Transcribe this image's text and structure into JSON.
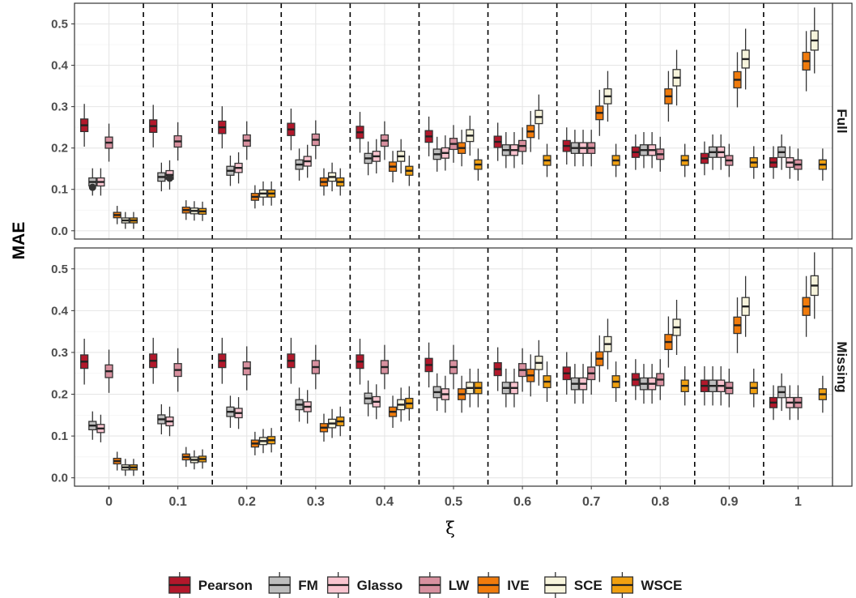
{
  "chart_data": {
    "type": "boxplot",
    "xlabel": "ξ",
    "ylabel": "MAE",
    "categories": [
      "0",
      "0.1",
      "0.2",
      "0.3",
      "0.4",
      "0.5",
      "0.6",
      "0.7",
      "0.8",
      "0.9",
      "1"
    ],
    "ylim": [
      -0.02,
      0.55
    ],
    "yticks": [
      0.0,
      0.1,
      0.2,
      0.3,
      0.4,
      0.5
    ],
    "ytick_labels": [
      "0.0",
      "0.1",
      "0.2",
      "0.3",
      "0.4",
      "0.5"
    ],
    "grid": true,
    "legend_position": "bottom",
    "series": [
      {
        "name": "Pearson",
        "color": "#b2182b"
      },
      {
        "name": "FM",
        "color": "#bdbdbd"
      },
      {
        "name": "Glasso",
        "color": "#f9c4cf"
      },
      {
        "name": "LW",
        "color": "#d8909f"
      },
      {
        "name": "IVE",
        "color": "#f07b0c"
      },
      {
        "name": "SCE",
        "color": "#f7f4dc"
      },
      {
        "name": "WSCE",
        "color": "#f0a010"
      }
    ],
    "panels": [
      {
        "label": "Full",
        "medians": [
          [
            0.255,
            0.118,
            0.118,
            0.213,
            0.038,
            0.025,
            0.025
          ],
          [
            0.253,
            0.13,
            0.135,
            0.216,
            0.05,
            0.048,
            0.047
          ],
          [
            0.25,
            0.145,
            0.152,
            0.218,
            0.082,
            0.09,
            0.09
          ],
          [
            0.245,
            0.16,
            0.168,
            0.22,
            0.118,
            0.13,
            0.118
          ],
          [
            0.238,
            0.175,
            0.18,
            0.218,
            0.155,
            0.18,
            0.145
          ],
          [
            0.228,
            0.185,
            0.188,
            0.21,
            0.2,
            0.23,
            0.16
          ],
          [
            0.215,
            0.195,
            0.195,
            0.205,
            0.24,
            0.275,
            0.17
          ],
          [
            0.205,
            0.2,
            0.2,
            0.2,
            0.285,
            0.325,
            0.17
          ],
          [
            0.19,
            0.195,
            0.195,
            0.185,
            0.325,
            0.37,
            0.17
          ],
          [
            0.175,
            0.19,
            0.19,
            0.17,
            0.365,
            0.415,
            0.165
          ],
          [
            0.165,
            0.19,
            0.165,
            0.16,
            0.41,
            0.46,
            0.16
          ]
        ],
        "outliers": [
          {
            "group": "0",
            "series": "FM",
            "y": 0.105
          },
          {
            "group": "0.1",
            "series": "Glasso",
            "y": 0.127
          }
        ]
      },
      {
        "label": "Missing",
        "medians": [
          [
            0.278,
            0.125,
            0.118,
            0.255,
            0.04,
            0.025,
            0.025
          ],
          [
            0.28,
            0.14,
            0.135,
            0.258,
            0.05,
            0.043,
            0.045
          ],
          [
            0.28,
            0.158,
            0.155,
            0.262,
            0.082,
            0.088,
            0.09
          ],
          [
            0.28,
            0.175,
            0.17,
            0.265,
            0.12,
            0.13,
            0.135
          ],
          [
            0.278,
            0.19,
            0.182,
            0.265,
            0.158,
            0.175,
            0.178
          ],
          [
            0.27,
            0.205,
            0.2,
            0.265,
            0.2,
            0.215,
            0.215
          ],
          [
            0.26,
            0.215,
            0.215,
            0.258,
            0.245,
            0.275,
            0.23
          ],
          [
            0.25,
            0.225,
            0.225,
            0.25,
            0.285,
            0.32,
            0.23
          ],
          [
            0.235,
            0.225,
            0.225,
            0.235,
            0.325,
            0.36,
            0.22
          ],
          [
            0.22,
            0.22,
            0.22,
            0.215,
            0.365,
            0.41,
            0.215
          ],
          [
            0.18,
            0.205,
            0.18,
            0.18,
            0.41,
            0.46,
            0.2
          ]
        ],
        "outliers": []
      }
    ]
  }
}
